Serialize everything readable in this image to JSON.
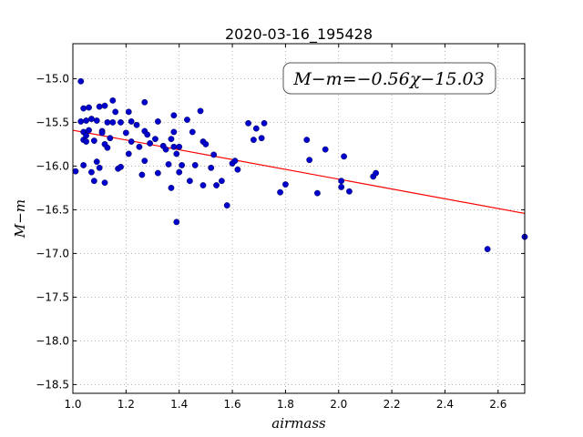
{
  "chart_data": {
    "type": "scatter",
    "title": "2020-03-16_195428",
    "xlabel": "airmass",
    "ylabel": "M−m",
    "xlim": [
      1.0,
      2.7
    ],
    "ylim": [
      -18.6,
      -14.6
    ],
    "x_ticks": [
      "1.0",
      "1.2",
      "1.4",
      "1.6",
      "1.8",
      "2.0",
      "2.2",
      "2.4",
      "2.6"
    ],
    "y_ticks": [
      "−15.0",
      "−15.5",
      "−16.0",
      "−16.5",
      "−17.0",
      "−17.5",
      "−18.0",
      "−18.5"
    ],
    "grid": true,
    "annotation": "M−m=−0.56χ−15.03",
    "fit": {
      "slope": -0.56,
      "intercept": -15.03,
      "color": "#ff0000"
    },
    "marker_color": "#0000cc",
    "points": [
      [
        1.01,
        -16.06
      ],
      [
        1.03,
        -15.03
      ],
      [
        1.03,
        -15.49
      ],
      [
        1.04,
        -15.61
      ],
      [
        1.04,
        -15.7
      ],
      [
        1.04,
        -15.99
      ],
      [
        1.04,
        -15.34
      ],
      [
        1.05,
        -15.72
      ],
      [
        1.05,
        -15.48
      ],
      [
        1.05,
        -15.65
      ],
      [
        1.06,
        -15.59
      ],
      [
        1.06,
        -15.33
      ],
      [
        1.07,
        -16.07
      ],
      [
        1.07,
        -15.46
      ],
      [
        1.08,
        -15.71
      ],
      [
        1.08,
        -16.17
      ],
      [
        1.09,
        -15.95
      ],
      [
        1.09,
        -15.48
      ],
      [
        1.1,
        -16.02
      ],
      [
        1.1,
        -15.32
      ],
      [
        1.11,
        -15.6
      ],
      [
        1.11,
        -15.62
      ],
      [
        1.12,
        -15.31
      ],
      [
        1.12,
        -15.75
      ],
      [
        1.12,
        -16.19
      ],
      [
        1.13,
        -15.79
      ],
      [
        1.13,
        -15.5
      ],
      [
        1.14,
        -15.68
      ],
      [
        1.15,
        -15.25
      ],
      [
        1.15,
        -15.5
      ],
      [
        1.16,
        -15.38
      ],
      [
        1.17,
        -16.03
      ],
      [
        1.18,
        -15.5
      ],
      [
        1.18,
        -16.01
      ],
      [
        1.2,
        -15.62
      ],
      [
        1.21,
        -15.86
      ],
      [
        1.21,
        -15.38
      ],
      [
        1.22,
        -15.49
      ],
      [
        1.22,
        -15.72
      ],
      [
        1.24,
        -15.53
      ],
      [
        1.25,
        -15.78
      ],
      [
        1.26,
        -16.1
      ],
      [
        1.27,
        -15.27
      ],
      [
        1.27,
        -15.94
      ],
      [
        1.27,
        -15.6
      ],
      [
        1.28,
        -15.64
      ],
      [
        1.29,
        -15.74
      ],
      [
        1.31,
        -15.69
      ],
      [
        1.32,
        -15.49
      ],
      [
        1.32,
        -16.08
      ],
      [
        1.34,
        -15.77
      ],
      [
        1.35,
        -15.81
      ],
      [
        1.36,
        -15.98
      ],
      [
        1.37,
        -15.69
      ],
      [
        1.37,
        -16.25
      ],
      [
        1.38,
        -15.61
      ],
      [
        1.38,
        -15.42
      ],
      [
        1.38,
        -15.78
      ],
      [
        1.39,
        -16.64
      ],
      [
        1.39,
        -15.86
      ],
      [
        1.4,
        -15.78
      ],
      [
        1.4,
        -16.07
      ],
      [
        1.41,
        -15.99
      ],
      [
        1.43,
        -15.47
      ],
      [
        1.44,
        -16.17
      ],
      [
        1.45,
        -15.61
      ],
      [
        1.46,
        -15.99
      ],
      [
        1.48,
        -15.37
      ],
      [
        1.49,
        -16.22
      ],
      [
        1.49,
        -15.72
      ],
      [
        1.5,
        -15.75
      ],
      [
        1.52,
        -16.02
      ],
      [
        1.53,
        -15.87
      ],
      [
        1.54,
        -16.22
      ],
      [
        1.56,
        -16.17
      ],
      [
        1.58,
        -16.45
      ],
      [
        1.6,
        -15.97
      ],
      [
        1.61,
        -15.94
      ],
      [
        1.62,
        -16.04
      ],
      [
        1.66,
        -15.51
      ],
      [
        1.68,
        -15.7
      ],
      [
        1.69,
        -15.57
      ],
      [
        1.71,
        -15.68
      ],
      [
        1.72,
        -15.51
      ],
      [
        1.78,
        -16.3
      ],
      [
        1.8,
        -16.21
      ],
      [
        1.88,
        -15.7
      ],
      [
        1.89,
        -15.93
      ],
      [
        1.92,
        -16.31
      ],
      [
        1.95,
        -15.81
      ],
      [
        2.01,
        -16.17
      ],
      [
        2.01,
        -16.24
      ],
      [
        2.02,
        -15.89
      ],
      [
        2.04,
        -16.29
      ],
      [
        2.13,
        -16.12
      ],
      [
        2.14,
        -16.08
      ],
      [
        2.56,
        -16.95
      ],
      [
        2.7,
        -16.81
      ]
    ]
  }
}
